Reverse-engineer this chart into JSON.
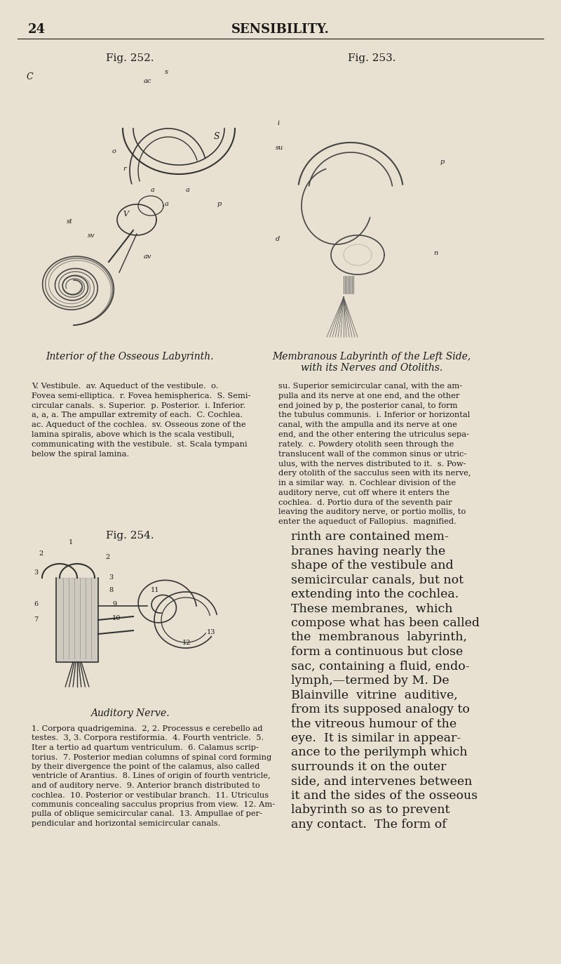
{
  "background_color": "#e8e0d0",
  "page_number": "24",
  "header_title": "SENSIBILITY.",
  "fig252_title": "Fig. 252.",
  "fig253_title": "Fig. 253.",
  "fig254_title": "Fig. 254.",
  "caption252": "Interior of the Osseous Labyrinth.",
  "caption253_line1": "Membranous Labyrinth of the Left Side,",
  "caption253_line2": "with its Nerves and Otoliths.",
  "caption254": "Auditory Nerve.",
  "text252": "V. Vestibule.  av. Aqueduct of the vestibule.  o.\nFovea semi-elliptica.  r. Fovea hemispherica.  S. Semi-\ncircular canals.  s. Superior.  p. Posterior.  i. Inferior.\na, a, a. The ampullar extremity of each.  C. Cochlea.\nac. Aqueduct of the cochlea.  sv. Osseous zone of the\nlamina spiralis, above which is the scala vestibuli,\ncommunicating with the vestibule.  st. Scala tympani\nbelow the spiral lamina.",
  "text253": "su. Superior semicircular canal, with the am-\npulla and its nerve at one end, and the other\nend joined by p, the posterior canal, to form\nthe tubulus communis.  i. Inferior or horizontal\ncanal, with the ampulla and its nerve at one\nend, and the other entering the utriculus sepa-\nrately.  c. Powdery otolith seen through the\ntranslucent wall of the common sinus or utric-\nulus, with the nerves distributed to it.  s. Pow-\ndery otolith of the sacculus seen with its nerve,\nin a similar way.  n. Cochlear division of the\nauditory nerve, cut off where it enters the\ncochlea.  d. Portio dura of the seventh pair\nleaving the auditory nerve, or portio mollis, to\nenter the aqueduct of Fallopius.  magnified.",
  "text254": "1. Corpora quadrigemina.  2, 2. Processus e cerebello ad\ntestes.  3, 3. Corpora restiformia.  4. Fourth ventricle.  5.\nIter a tertio ad quartum ventriculum.  6. Calamus scrip-\ntorius.  7. Posterior median columns of spinal cord forming\nby their divergence the point of the calamus, also called\nventricle of Arantius.  8. Lines of origin of fourth ventricle,\nand of auditory nerve.  9. Anterior branch distributed to\ncochlea.  10. Posterior or vestibular branch.  11. Utriculus\ncommunis concealing sacculus proprius from view.  12. Am-\npulla of oblique semicircular canal.  13. Ampullae of per-\npendicular and horizontal semicircular canals.",
  "right_text_lines": [
    "rinth are contained mem-",
    "branes having nearly the",
    "shape of the vestibule and",
    "semicircular canals, but not",
    "extending into the cochlea.",
    "These membranes,  which",
    "compose what has been called",
    "the  membranous  labyrinth,",
    "form a continuous but close",
    "sac, containing a fluid, endo-",
    "lymph,—termed by M. De",
    "Blainville  vitrine  auditive,",
    "from its supposed analogy to",
    "the vitreous humour of the",
    "eye.  It is similar in appear-",
    "ance to the perilymph which",
    "surrounds it on the outer",
    "side, and intervenes between",
    "it and the sides of the osseous",
    "labyrinth so as to prevent",
    "any contact.  The form of"
  ],
  "text_color": "#1a1a1a"
}
